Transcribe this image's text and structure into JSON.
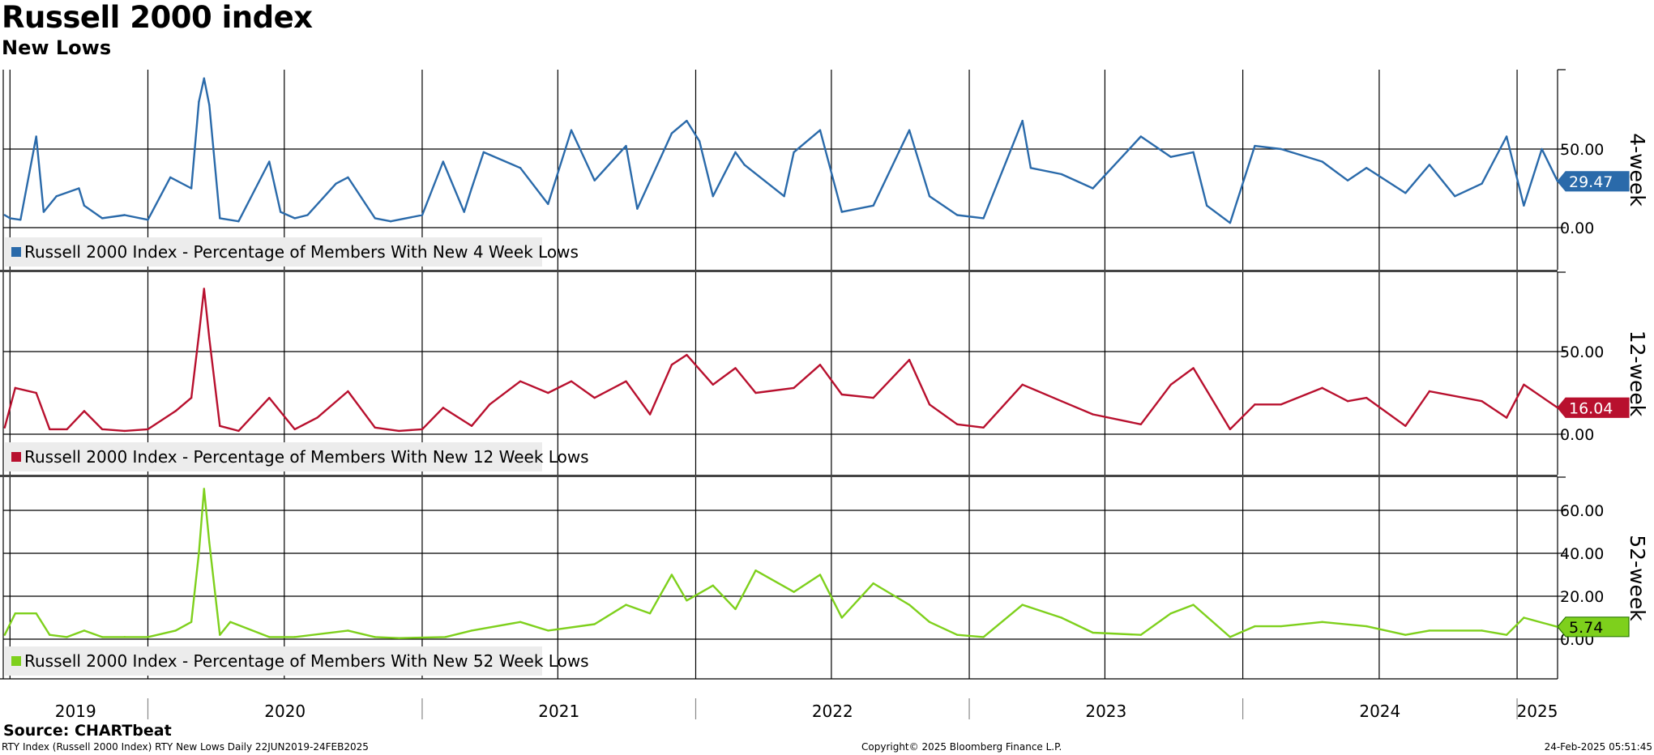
{
  "header": {
    "title": "Russell 2000 index",
    "subtitle": "New Lows"
  },
  "footer": {
    "source": "Source: CHARTbeat",
    "left": "RTY Index (Russell 2000 Index) RTY New Lows  Daily 22JUN2019-24FEB2025",
    "center": "Copyright© 2025 Bloomberg Finance L.P.",
    "right": "24-Feb-2025 05:51:45"
  },
  "colors": {
    "four_week": "#2a6aaa",
    "twelve_week": "#b8102e",
    "fifty_two_week": "#7ed01c",
    "grid": "#000000",
    "legend_bg": "#ececec"
  },
  "chart_data": [
    {
      "type": "line",
      "panel_label": "4-week",
      "series": [
        {
          "name": "Russell 2000 Index - Percentage of Members With New 4 Week Lows",
          "last_value": "29.47",
          "x": [
            "2019-06-24",
            "2019-07-01",
            "2019-07-15",
            "2019-08-05",
            "2019-08-15",
            "2019-09-01",
            "2019-10-01",
            "2019-10-08",
            "2019-11-01",
            "2019-12-01",
            "2020-01-01",
            "2020-01-31",
            "2020-02-28",
            "2020-03-09",
            "2020-03-16",
            "2020-03-23",
            "2020-04-06",
            "2020-05-01",
            "2020-06-11",
            "2020-06-26",
            "2020-07-15",
            "2020-08-01",
            "2020-09-08",
            "2020-09-24",
            "2020-10-30",
            "2020-11-20",
            "2021-01-01",
            "2021-01-29",
            "2021-02-26",
            "2021-03-08",
            "2021-03-24",
            "2021-05-12",
            "2021-06-18",
            "2021-07-19",
            "2021-08-19",
            "2021-09-30",
            "2021-10-15",
            "2021-11-30",
            "2021-12-20",
            "2022-01-06",
            "2022-01-24",
            "2022-02-23",
            "2022-03-07",
            "2022-04-29",
            "2022-05-12",
            "2022-06-16",
            "2022-07-15",
            "2022-08-26",
            "2022-09-29",
            "2022-10-13",
            "2022-11-09",
            "2022-12-16",
            "2023-01-20",
            "2023-03-13",
            "2023-03-24",
            "2023-05-04",
            "2023-06-15",
            "2023-08-18",
            "2023-09-27",
            "2023-10-27",
            "2023-11-14",
            "2023-12-15",
            "2024-01-17",
            "2024-02-21",
            "2024-04-16",
            "2024-05-20",
            "2024-06-14",
            "2024-08-05",
            "2024-09-06",
            "2024-10-10",
            "2024-11-15",
            "2024-12-18",
            "2025-01-10",
            "2025-02-03",
            "2025-02-24"
          ],
          "values": [
            8,
            6,
            5,
            58,
            10,
            20,
            25,
            14,
            6,
            8,
            5,
            32,
            25,
            80,
            95,
            78,
            6,
            4,
            42,
            10,
            6,
            8,
            28,
            32,
            6,
            4,
            8,
            42,
            10,
            25,
            48,
            38,
            15,
            62,
            30,
            52,
            12,
            60,
            68,
            55,
            20,
            48,
            40,
            20,
            48,
            62,
            10,
            14,
            48,
            62,
            20,
            8,
            6,
            68,
            38,
            34,
            25,
            58,
            45,
            48,
            14,
            3,
            52,
            50,
            42,
            30,
            38,
            22,
            40,
            20,
            28,
            58,
            14,
            50,
            29.47
          ]
        }
      ],
      "ylim": [
        0,
        100
      ],
      "y_ticks": [
        "0.00",
        "50.00"
      ]
    },
    {
      "type": "line",
      "panel_label": "12-week",
      "series": [
        {
          "name": "Russell 2000 Index - Percentage of Members With New 12 Week Lows",
          "last_value": "16.04",
          "x": [
            "2019-06-24",
            "2019-07-08",
            "2019-08-05",
            "2019-08-23",
            "2019-09-15",
            "2019-10-08",
            "2019-11-01",
            "2019-12-01",
            "2020-01-01",
            "2020-02-07",
            "2020-02-28",
            "2020-03-09",
            "2020-03-16",
            "2020-03-23",
            "2020-04-06",
            "2020-05-01",
            "2020-06-11",
            "2020-07-15",
            "2020-08-14",
            "2020-09-24",
            "2020-10-30",
            "2020-12-01",
            "2021-01-01",
            "2021-01-29",
            "2021-03-08",
            "2021-04-01",
            "2021-05-12",
            "2021-06-18",
            "2021-07-19",
            "2021-08-19",
            "2021-09-30",
            "2021-11-01",
            "2021-11-30",
            "2021-12-20",
            "2022-01-24",
            "2022-02-23",
            "2022-03-22",
            "2022-05-12",
            "2022-06-16",
            "2022-07-15",
            "2022-08-26",
            "2022-10-13",
            "2022-11-09",
            "2022-12-16",
            "2023-01-20",
            "2023-03-13",
            "2023-05-04",
            "2023-06-15",
            "2023-08-18",
            "2023-09-27",
            "2023-10-27",
            "2023-12-15",
            "2024-01-17",
            "2024-02-21",
            "2024-04-16",
            "2024-05-20",
            "2024-06-14",
            "2024-08-05",
            "2024-09-06",
            "2024-11-15",
            "2024-12-18",
            "2025-01-10",
            "2025-02-24"
          ],
          "values": [
            4,
            28,
            25,
            3,
            3,
            14,
            3,
            2,
            3,
            14,
            22,
            60,
            88,
            58,
            5,
            2,
            22,
            3,
            10,
            26,
            4,
            2,
            3,
            16,
            5,
            18,
            32,
            25,
            32,
            22,
            32,
            12,
            42,
            48,
            30,
            40,
            25,
            28,
            42,
            24,
            22,
            45,
            18,
            6,
            4,
            30,
            20,
            12,
            6,
            30,
            40,
            3,
            18,
            18,
            28,
            20,
            22,
            5,
            26,
            20,
            10,
            30,
            16.04
          ]
        }
      ],
      "ylim": [
        0,
        100
      ],
      "y_ticks": [
        "0.00",
        "50.00"
      ]
    },
    {
      "type": "line",
      "panel_label": "52-week",
      "series": [
        {
          "name": "Russell 2000 Index - Percentage of Members With New 52 Week Lows",
          "last_value": "5.74",
          "x": [
            "2019-06-24",
            "2019-07-08",
            "2019-08-05",
            "2019-08-23",
            "2019-09-15",
            "2019-10-08",
            "2019-11-01",
            "2019-12-01",
            "2020-01-01",
            "2020-02-07",
            "2020-02-28",
            "2020-03-09",
            "2020-03-16",
            "2020-03-23",
            "2020-04-06",
            "2020-04-20",
            "2020-06-11",
            "2020-07-15",
            "2020-09-24",
            "2020-10-30",
            "2020-12-01",
            "2021-02-01",
            "2021-03-08",
            "2021-05-12",
            "2021-06-18",
            "2021-08-19",
            "2021-09-30",
            "2021-11-01",
            "2021-11-30",
            "2021-12-20",
            "2022-01-24",
            "2022-02-23",
            "2022-03-22",
            "2022-05-12",
            "2022-06-16",
            "2022-07-15",
            "2022-08-26",
            "2022-10-13",
            "2022-11-09",
            "2022-12-16",
            "2023-01-20",
            "2023-03-13",
            "2023-05-04",
            "2023-06-15",
            "2023-08-18",
            "2023-09-27",
            "2023-10-27",
            "2023-12-15",
            "2024-01-17",
            "2024-02-21",
            "2024-04-16",
            "2024-06-14",
            "2024-08-05",
            "2024-09-06",
            "2024-11-15",
            "2024-12-18",
            "2025-01-10",
            "2025-02-24"
          ],
          "values": [
            2,
            12,
            12,
            2,
            1,
            4,
            1,
            1,
            1,
            4,
            8,
            40,
            70,
            45,
            2,
            8,
            1,
            1,
            4,
            1,
            0.5,
            1,
            4,
            8,
            4,
            7,
            16,
            12,
            30,
            18,
            25,
            14,
            32,
            22,
            30,
            10,
            26,
            16,
            8,
            2,
            1,
            16,
            10,
            3,
            2,
            12,
            16,
            1,
            6,
            6,
            8,
            6,
            2,
            4,
            4,
            2,
            10,
            5.74
          ]
        }
      ],
      "ylim": [
        -5,
        75
      ],
      "y_ticks": [
        "0.00",
        "20.00",
        "40.00",
        "60.00"
      ]
    }
  ],
  "x_axis": {
    "range": [
      "2019-06-22",
      "2025-02-24"
    ],
    "year_labels": [
      "2019",
      "2020",
      "2021",
      "2022",
      "2023",
      "2024",
      "2025"
    ]
  }
}
